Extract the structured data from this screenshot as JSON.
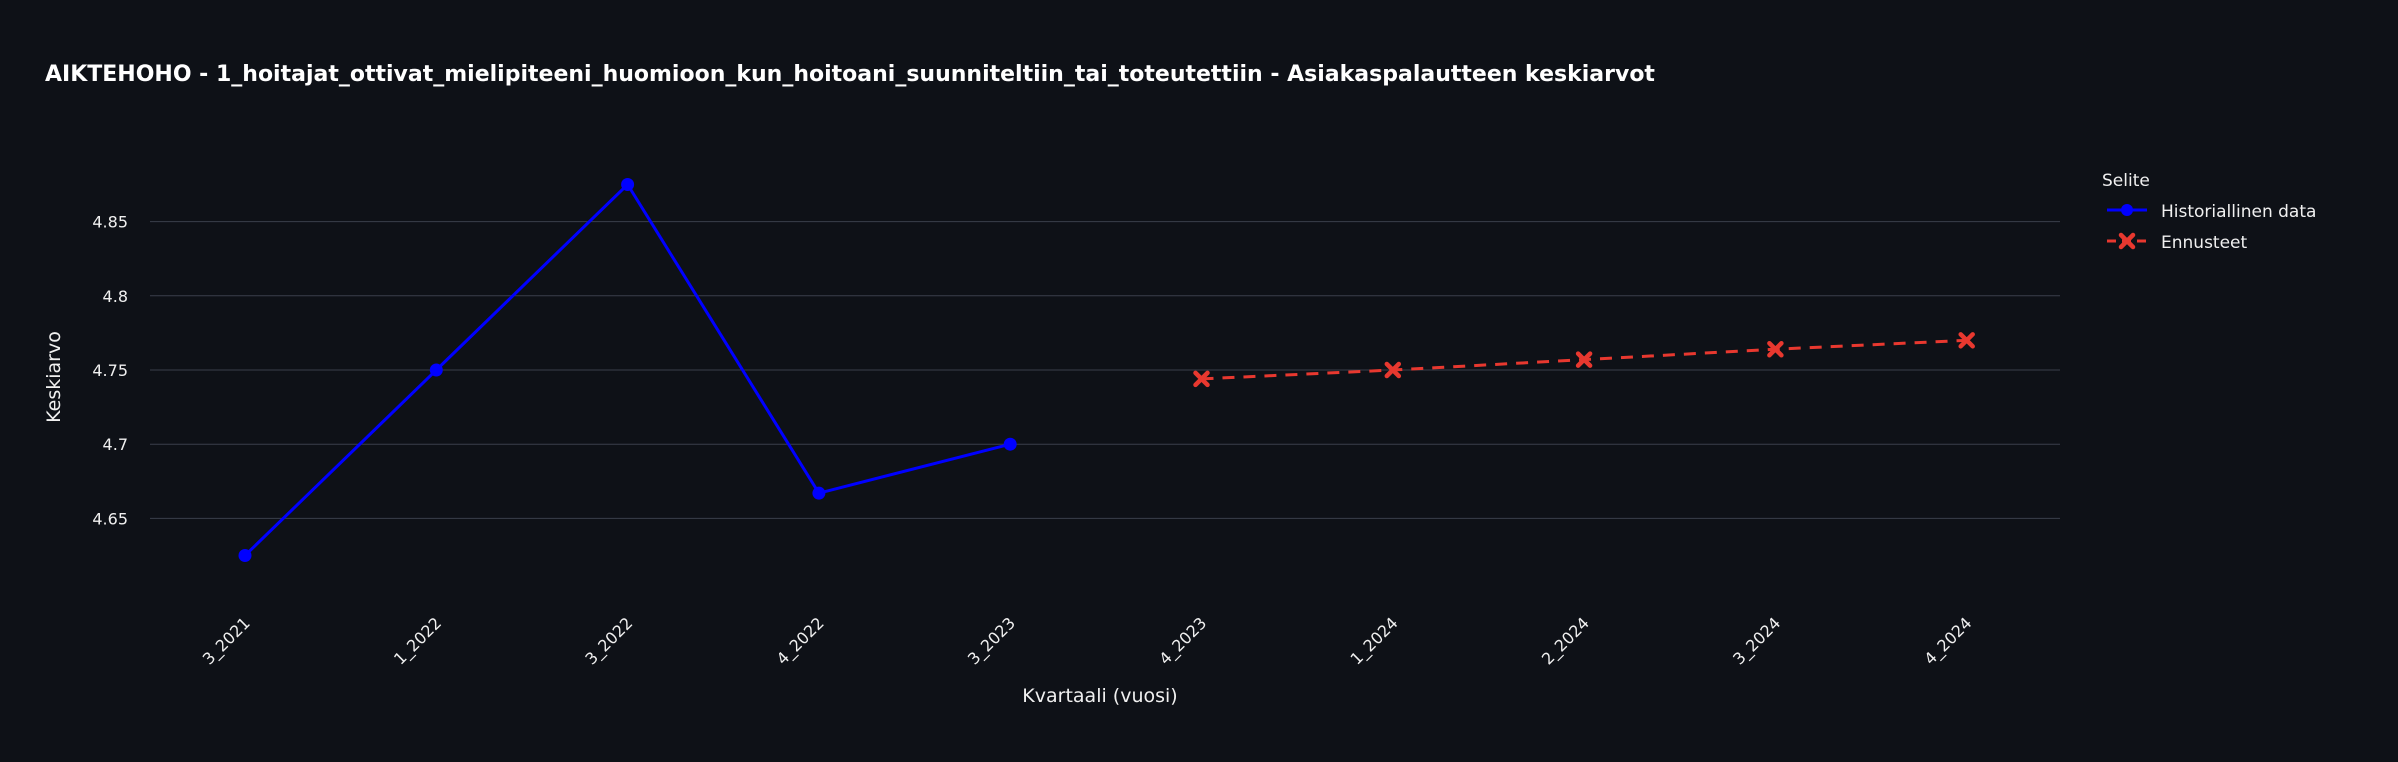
{
  "chart_data": {
    "type": "line",
    "title": "AIKTEHOHO - 1_hoitajat_ottivat_mielipiteeni_huomioon_kun_hoitoani_suunniteltiin_tai_toteutettiin - Asiakaspalautteen keskiarvot",
    "xlabel": "Kvartaali (vuosi)",
    "ylabel": "Keskiarvo",
    "categories": [
      "3_2021",
      "1_2022",
      "3_2022",
      "4_2022",
      "3_2023",
      "4_2023",
      "1_2024",
      "2_2024",
      "3_2024",
      "4_2024"
    ],
    "ylim": [
      4.595,
      4.905
    ],
    "yticks": [
      "4.65",
      "4.7",
      "4.75",
      "4.8",
      "4.85"
    ],
    "legend": {
      "title": "Selite",
      "position": "top-right"
    },
    "series": [
      {
        "name": "Historiallinen data",
        "color": "#0000ff",
        "style": "solid",
        "marker": "circle",
        "x": [
          "3_2021",
          "1_2022",
          "3_2022",
          "4_2022",
          "3_2023"
        ],
        "values": [
          4.625,
          4.75,
          4.875,
          4.667,
          4.7
        ]
      },
      {
        "name": "Ennusteet",
        "color": "#e8382f",
        "style": "dash",
        "marker": "x",
        "x": [
          "4_2023",
          "1_2024",
          "2_2024",
          "3_2024",
          "4_2024"
        ],
        "values": [
          4.744,
          4.75,
          4.757,
          4.764,
          4.77
        ]
      }
    ]
  }
}
